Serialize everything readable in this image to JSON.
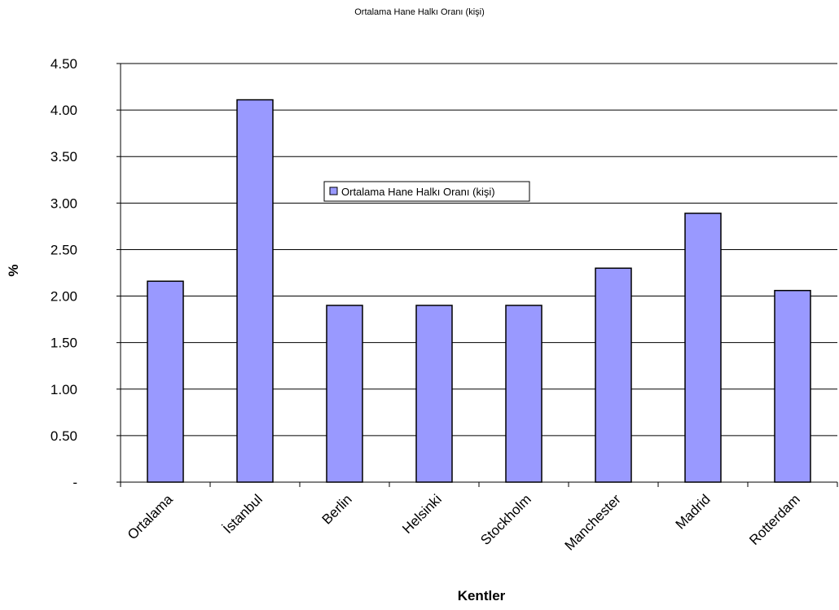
{
  "chart_data": {
    "type": "bar",
    "title": "Ortalama Hane Halkı Oranı (kişi)",
    "xlabel": "Kentler",
    "ylabel": "%",
    "categories": [
      "Ortalama",
      "İstanbul",
      "Berlin",
      "Helsinki",
      "Stockholm",
      "Manchester",
      "Madrid",
      "Rotterdam"
    ],
    "series": [
      {
        "name": "Ortalama Hane Halkı Oranı (kişi)",
        "values": [
          2.16,
          4.11,
          1.9,
          1.9,
          1.9,
          2.3,
          2.89,
          2.06
        ],
        "color": "#9999ff"
      }
    ],
    "ylim": [
      0,
      4.5
    ],
    "yticks": [
      0,
      0.5,
      1.0,
      1.5,
      2.0,
      2.5,
      3.0,
      3.5,
      4.0,
      4.5
    ],
    "ytick_labels": [
      "-",
      "0.50",
      "1.00",
      "1.50",
      "2.00",
      "2.50",
      "3.00",
      "3.50",
      "4.00",
      "4.50"
    ],
    "grid": true,
    "legend_position": "inside-top-center"
  }
}
